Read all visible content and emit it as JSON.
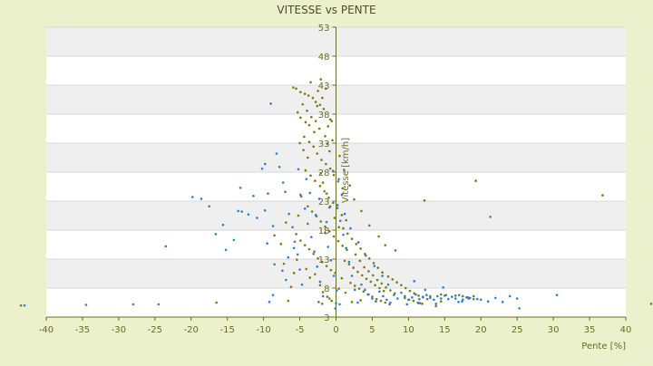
{
  "chart_data": {
    "type": "scatter",
    "title": "VITESSE vs PENTE",
    "xlabel": "Pente [%]",
    "ylabel": "Vitesse [km/h]",
    "xlim": [
      -40,
      40
    ],
    "ylim": [
      3,
      53
    ],
    "x_ticks": [
      -40,
      -35,
      -30,
      -25,
      -20,
      -15,
      -10,
      -5,
      0,
      5,
      10,
      15,
      20,
      25,
      30,
      35,
      40
    ],
    "y_ticks": [
      3,
      8,
      13,
      18,
      23,
      28,
      33,
      38,
      43,
      48,
      53
    ],
    "grid": true,
    "legend": "none",
    "series": [
      {
        "color": "#7a7a1a",
        "points": [
          [
            -43.5,
            5
          ],
          [
            -34.5,
            5.1
          ],
          [
            -28,
            5.2
          ],
          [
            -24.5,
            5.2
          ],
          [
            -16.5,
            5.5
          ],
          [
            43.5,
            5.3
          ],
          [
            36.8,
            24
          ],
          [
            21.3,
            20.3
          ],
          [
            19.3,
            26.5
          ],
          [
            12.2,
            23.1
          ],
          [
            -5.9,
            42.6
          ],
          [
            -5.5,
            42.4
          ],
          [
            -4.9,
            41.8
          ],
          [
            -4.3,
            41.5
          ],
          [
            -3.8,
            41.2
          ],
          [
            -3.2,
            40.8
          ],
          [
            -2.8,
            40.1
          ],
          [
            -2.2,
            39.6
          ],
          [
            -1.7,
            38.9
          ],
          [
            -2.5,
            42
          ],
          [
            -3.5,
            43.5
          ],
          [
            -2.1,
            44
          ],
          [
            -4.6,
            39.7
          ],
          [
            -4,
            38.6
          ],
          [
            -3.4,
            37.5
          ],
          [
            -2.8,
            36.8
          ],
          [
            -2.3,
            35.5
          ],
          [
            -1.5,
            34.2
          ],
          [
            -1.2,
            32.9
          ],
          [
            -0.9,
            31.6
          ],
          [
            -4.4,
            34.1
          ],
          [
            -3.7,
            33.2
          ],
          [
            -3.1,
            32.4
          ],
          [
            -2.6,
            31.2
          ],
          [
            -2.0,
            30.1
          ],
          [
            -1.4,
            29.4
          ],
          [
            -0.8,
            28.6
          ],
          [
            -0.3,
            27.5
          ],
          [
            0.3,
            26.4
          ],
          [
            0.9,
            25.2
          ],
          [
            -4.2,
            28.3
          ],
          [
            -3.5,
            27.4
          ],
          [
            -2.9,
            26.5
          ],
          [
            -2.2,
            25.6
          ],
          [
            -1.6,
            24.7
          ],
          [
            -1.0,
            23.6
          ],
          [
            -0.4,
            22.7
          ],
          [
            0.2,
            21.8
          ],
          [
            0.8,
            20.6
          ],
          [
            1.4,
            19.7
          ],
          [
            -3.9,
            22.1
          ],
          [
            -3.3,
            21.2
          ],
          [
            -2.7,
            20.4
          ],
          [
            -2.1,
            19.5
          ],
          [
            -1.5,
            18.6
          ],
          [
            -0.9,
            17.8
          ],
          [
            -0.3,
            16.9
          ],
          [
            0.3,
            16.1
          ],
          [
            0.9,
            15.3
          ],
          [
            1.5,
            14.6
          ],
          [
            -5.5,
            17.3
          ],
          [
            -4.9,
            16.2
          ],
          [
            -4.3,
            15.4
          ],
          [
            -3.7,
            14.7
          ],
          [
            -3.1,
            13.9
          ],
          [
            -2.5,
            13.1
          ],
          [
            -1.9,
            12.5
          ],
          [
            -1.3,
            11.8
          ],
          [
            -0.7,
            11.1
          ],
          [
            -0.1,
            10.6
          ],
          [
            1.0,
            18.3
          ],
          [
            1.6,
            17.4
          ],
          [
            2.2,
            16.5
          ],
          [
            2.8,
            15.6
          ],
          [
            3.4,
            14.8
          ],
          [
            4.0,
            13.9
          ],
          [
            4.6,
            13.1
          ],
          [
            5.2,
            12.3
          ],
          [
            5.8,
            11.5
          ],
          [
            6.4,
            10.7
          ],
          [
            1.2,
            12.7
          ],
          [
            1.8,
            12.1
          ],
          [
            2.4,
            11.5
          ],
          [
            3.0,
            10.8
          ],
          [
            3.6,
            10.2
          ],
          [
            4.2,
            9.6
          ],
          [
            4.8,
            9.1
          ],
          [
            5.4,
            8.5
          ],
          [
            6.0,
            8.0
          ],
          [
            6.6,
            7.5
          ],
          [
            7.2,
            10.0
          ],
          [
            7.8,
            9.5
          ],
          [
            8.4,
            9.0
          ],
          [
            9.0,
            8.5
          ],
          [
            9.6,
            8.0
          ],
          [
            10.2,
            7.5
          ],
          [
            10.8,
            7.1
          ],
          [
            11.4,
            6.7
          ],
          [
            12.0,
            6.4
          ],
          [
            12.6,
            6.1
          ],
          [
            2.0,
            8.9
          ],
          [
            2.6,
            8.4
          ],
          [
            3.2,
            7.9
          ],
          [
            3.8,
            7.4
          ],
          [
            4.4,
            6.9
          ],
          [
            5.0,
            6.5
          ],
          [
            5.6,
            6.1
          ],
          [
            6.2,
            5.8
          ],
          [
            6.8,
            5.5
          ],
          [
            7.4,
            5.2
          ],
          [
            -6.6,
            5.8
          ],
          [
            -6.2,
            8.2
          ],
          [
            -5.8,
            10.6
          ],
          [
            -5.4,
            12.9
          ],
          [
            -7.2,
            12.2
          ],
          [
            -7.6,
            15.6
          ],
          [
            -8.5,
            17.1
          ],
          [
            -6.9,
            19.3
          ],
          [
            -5.2,
            20.5
          ],
          [
            -4.8,
            23.8
          ],
          [
            -2.2,
            8.5
          ],
          [
            -1.8,
            7.3
          ],
          [
            -1.2,
            6.5
          ],
          [
            -0.6,
            5.8
          ],
          [
            0.4,
            7.9
          ],
          [
            0.8,
            9.7
          ],
          [
            1.3,
            7.2
          ],
          [
            -3.6,
            9.8
          ],
          [
            -4.1,
            11.3
          ],
          [
            -2.9,
            10.4
          ],
          [
            8.2,
            14.5
          ],
          [
            6.8,
            15.4
          ],
          [
            5.9,
            16.9
          ],
          [
            4.6,
            18.8
          ],
          [
            3.5,
            21.3
          ],
          [
            2.5,
            23.3
          ],
          [
            1.9,
            25.7
          ],
          [
            1.1,
            28.4
          ],
          [
            0.5,
            30.8
          ],
          [
            -0.5,
            33.5
          ],
          [
            13.0,
            6.6
          ],
          [
            14.5,
            6.9
          ],
          [
            15.2,
            6.8
          ],
          [
            16.5,
            6.7
          ],
          [
            17.5,
            6.6
          ],
          [
            18.2,
            6.4
          ],
          [
            19.0,
            6.1
          ],
          [
            11.6,
            5.4
          ],
          [
            13.8,
            4.9
          ],
          [
            14.5,
            5.7
          ],
          [
            -1.4,
            42.4
          ],
          [
            -0.8,
            37.1
          ],
          [
            -1.1,
            35.9
          ],
          [
            -0.6,
            36.8
          ],
          [
            -1.9,
            40.8
          ],
          [
            -2.6,
            39.4
          ],
          [
            -3.7,
            36.1
          ],
          [
            -4.2,
            36.6
          ],
          [
            -4.9,
            37.4
          ],
          [
            -5.3,
            38.3
          ],
          [
            -2.1,
            27.8
          ],
          [
            -1.8,
            26.2
          ],
          [
            -1.3,
            24.3
          ],
          [
            -0.8,
            22.1
          ],
          [
            -0.2,
            20.1
          ],
          [
            0.4,
            18.5
          ],
          [
            -3.9,
            30.5
          ],
          [
            -4.5,
            31.8
          ],
          [
            -5.0,
            33.0
          ],
          [
            -3.0,
            34.9
          ],
          [
            2.7,
            13.8
          ],
          [
            3.3,
            12.7
          ],
          [
            3.9,
            11.6
          ],
          [
            4.5,
            10.9
          ],
          [
            5.1,
            10.2
          ],
          [
            5.7,
            9.4
          ],
          [
            6.3,
            8.8
          ],
          [
            6.9,
            8.1
          ],
          [
            7.5,
            7.6
          ],
          [
            8.1,
            7.1
          ],
          [
            9.5,
            6.3
          ],
          [
            10.1,
            6.0
          ],
          [
            10.7,
            5.8
          ],
          [
            11.3,
            5.5
          ],
          [
            11.9,
            5.3
          ],
          [
            -2.4,
            5.6
          ],
          [
            -1.9,
            5.3
          ],
          [
            -0.9,
            6.2
          ],
          [
            2.2,
            5.6
          ],
          [
            3.4,
            5.9
          ]
        ]
      },
      {
        "color": "#2a7fd4",
        "points": [
          [
            -43,
            5
          ],
          [
            -23.5,
            15.2
          ],
          [
            -19.8,
            23.7
          ],
          [
            -18.6,
            23.4
          ],
          [
            -17.5,
            22.1
          ],
          [
            -16.6,
            17.3
          ],
          [
            -15.6,
            18.9
          ],
          [
            -15.2,
            14.6
          ],
          [
            -14.1,
            16.3
          ],
          [
            -13.2,
            25.3
          ],
          [
            -13.5,
            21.3
          ],
          [
            -13.0,
            21.2
          ],
          [
            -12.1,
            20.7
          ],
          [
            -11.4,
            23.9
          ],
          [
            -10.9,
            20.1
          ],
          [
            -10.2,
            28.6
          ],
          [
            -9.8,
            21.4
          ],
          [
            -9.4,
            24.3
          ],
          [
            -9.8,
            29.4
          ],
          [
            -9.0,
            39.8
          ],
          [
            -9.5,
            15.7
          ],
          [
            -8.7,
            18.7
          ],
          [
            -8.5,
            12.1
          ],
          [
            -8.7,
            6.8
          ],
          [
            -9.2,
            5.6
          ],
          [
            -8.2,
            31.2
          ],
          [
            -7.8,
            28.9
          ],
          [
            -7.3,
            26.2
          ],
          [
            -7.0,
            24.6
          ],
          [
            -6.5,
            20.8
          ],
          [
            -6.0,
            18.5
          ],
          [
            -5.7,
            16.0
          ],
          [
            -5.3,
            13.8
          ],
          [
            -5.0,
            11.2
          ],
          [
            -4.7,
            8.6
          ],
          [
            -5.2,
            28.5
          ],
          [
            -4.9,
            24.1
          ],
          [
            -4.3,
            21.7
          ],
          [
            -3.9,
            19.1
          ],
          [
            -3.4,
            16.8
          ],
          [
            -3.0,
            14.3
          ],
          [
            -2.6,
            11.7
          ],
          [
            -2.2,
            9.1
          ],
          [
            -1.8,
            6.6
          ],
          [
            -1.5,
            17.5
          ],
          [
            -1.1,
            15.1
          ],
          [
            -0.7,
            12.8
          ],
          [
            -0.3,
            10.1
          ],
          [
            0.1,
            7.6
          ],
          [
            0.5,
            5.2
          ],
          [
            0.2,
            22.3
          ],
          [
            0.6,
            19.6
          ],
          [
            1.0,
            17.2
          ],
          [
            1.4,
            14.9
          ],
          [
            1.8,
            12.5
          ],
          [
            2.2,
            10.1
          ],
          [
            2.6,
            7.7
          ],
          [
            3.0,
            5.5
          ],
          [
            0.0,
            5.4
          ],
          [
            -0.1,
            4.5
          ],
          [
            3.5,
            8.6
          ],
          [
            4.0,
            7.7
          ],
          [
            4.5,
            6.9
          ],
          [
            5.0,
            6.2
          ],
          [
            5.5,
            5.7
          ],
          [
            6.0,
            7.4
          ],
          [
            6.5,
            6.6
          ],
          [
            7.0,
            6.0
          ],
          [
            7.5,
            5.5
          ],
          [
            8.0,
            6.8
          ],
          [
            8.5,
            6.2
          ],
          [
            9.0,
            7.2
          ],
          [
            9.5,
            6.6
          ],
          [
            10.0,
            6.0
          ],
          [
            10.5,
            6.4
          ],
          [
            11.0,
            6.9
          ],
          [
            11.5,
            6.1
          ],
          [
            12.0,
            6.5
          ],
          [
            12.5,
            6.8
          ],
          [
            13.0,
            6.3
          ],
          [
            13.5,
            6.0
          ],
          [
            14.0,
            6.6
          ],
          [
            14.5,
            6.2
          ],
          [
            15.0,
            6.7
          ],
          [
            15.5,
            6.1
          ],
          [
            16.0,
            6.5
          ],
          [
            16.5,
            6.2
          ],
          [
            17.0,
            6.8
          ],
          [
            17.5,
            6.0
          ],
          [
            18.0,
            6.4
          ],
          [
            18.5,
            6.3
          ],
          [
            19.0,
            6.6
          ],
          [
            19.5,
            6.1
          ],
          [
            20.0,
            6.0
          ],
          [
            21.0,
            5.7
          ],
          [
            22.0,
            6.3
          ],
          [
            23.0,
            5.6
          ],
          [
            24.0,
            6.6
          ],
          [
            25.0,
            6.2
          ],
          [
            25.3,
            4.5
          ],
          [
            30.5,
            6.8
          ],
          [
            9.8,
            5.2
          ],
          [
            11.4,
            5.4
          ],
          [
            13.8,
            5.3
          ],
          [
            16.9,
            5.6
          ],
          [
            17.4,
            5.7
          ],
          [
            18.3,
            6.2
          ],
          [
            14.8,
            8.1
          ],
          [
            12.3,
            7.7
          ],
          [
            10.8,
            9.2
          ],
          [
            7.2,
            8.6
          ],
          [
            6.4,
            10.1
          ],
          [
            5.3,
            11.8
          ],
          [
            4.1,
            13.6
          ],
          [
            3.1,
            15.9
          ],
          [
            2.0,
            18.3
          ],
          [
            1.2,
            20.8
          ],
          [
            0.8,
            24.1
          ],
          [
            0.4,
            26.8
          ],
          [
            -0.4,
            28.2
          ],
          [
            -2.3,
            23.4
          ],
          [
            -2.8,
            20.6
          ],
          [
            -3.6,
            24.4
          ],
          [
            -4.1,
            26.8
          ],
          [
            -5.8,
            14.9
          ],
          [
            -6.6,
            13.3
          ],
          [
            -7.4,
            11.0
          ],
          [
            -6.9,
            9.4
          ],
          [
            -0.9,
            21.9
          ],
          [
            -1.3,
            19.4
          ]
        ]
      }
    ]
  }
}
